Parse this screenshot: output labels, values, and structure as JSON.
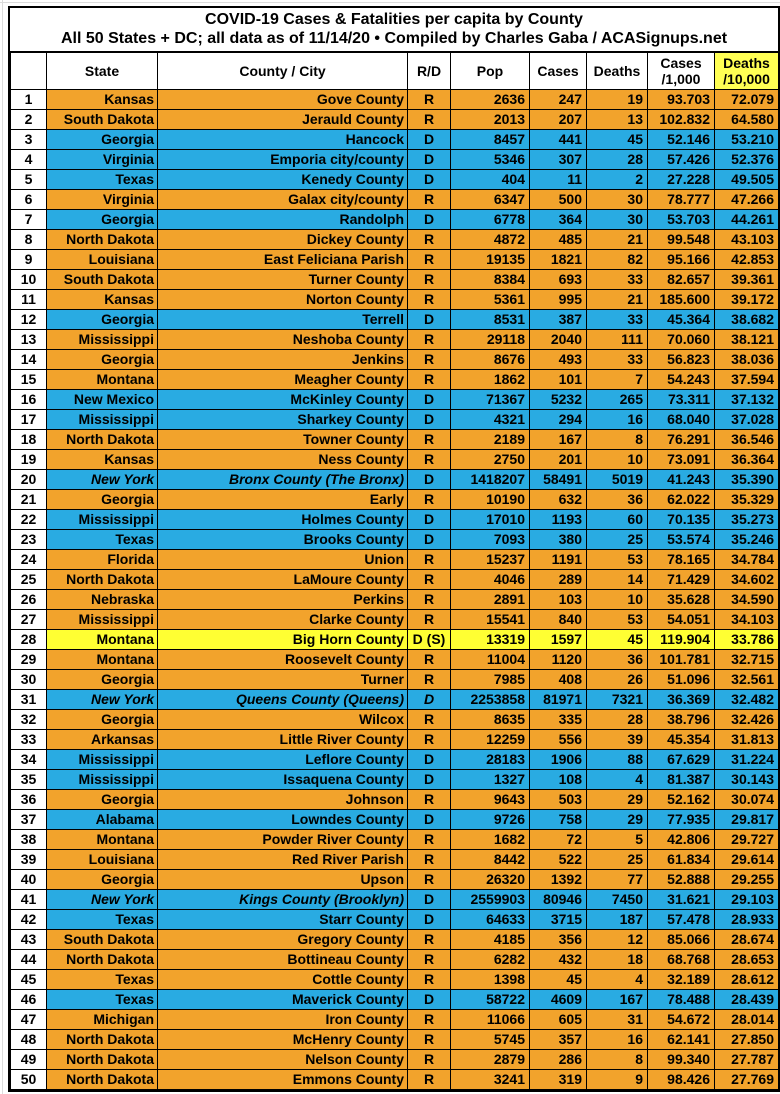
{
  "title": "COVID-19 Cases & Fatalities per capita by County",
  "subtitle": "All 50 States + DC; all data as of 11/14/20  • Compiled by Charles Gaba / ACASignups.net",
  "columns": {
    "rank": "",
    "state": "State",
    "county": "County / City",
    "rd": "R/D",
    "pop": "Pop",
    "cases": "Cases",
    "deaths": "Deaths",
    "cases_per_1000_l1": "Cases",
    "cases_per_1000_l2": "/1,000",
    "deaths_per_10000_l1": "Deaths",
    "deaths_per_10000_l2": "/10,000"
  },
  "colors": {
    "republican_row": "#F2A32C",
    "democrat_row": "#29ABE2",
    "split_row": "#FFFF33",
    "header_highlight": "#FFFF54",
    "border": "#000000"
  },
  "chart_data": {
    "type": "table",
    "title": "COVID-19 Cases & Fatalities per capita by County",
    "subtitle": "All 50 States + DC; all data as of 11/14/20  • Compiled by Charles Gaba / ACASignups.net",
    "columns": [
      "",
      "State",
      "County / City",
      "R/D",
      "Pop",
      "Cases",
      "Deaths",
      "Cases /1,000",
      "Deaths /10,000"
    ],
    "rows": [
      {
        "rank": 1,
        "state": "Kansas",
        "county": "Gove County",
        "rd": "R",
        "pop": 2636,
        "cases": 247,
        "deaths": 19,
        "c1k": "93.703",
        "d10k": "72.079",
        "fill": "R",
        "italic": false,
        "rd_italic": false
      },
      {
        "rank": 2,
        "state": "South Dakota",
        "county": "Jerauld County",
        "rd": "R",
        "pop": 2013,
        "cases": 207,
        "deaths": 13,
        "c1k": "102.832",
        "d10k": "64.580",
        "fill": "R",
        "italic": false,
        "rd_italic": false
      },
      {
        "rank": 3,
        "state": "Georgia",
        "county": "Hancock",
        "rd": "D",
        "pop": 8457,
        "cases": 441,
        "deaths": 45,
        "c1k": "52.146",
        "d10k": "53.210",
        "fill": "D",
        "italic": false,
        "rd_italic": false
      },
      {
        "rank": 4,
        "state": "Virginia",
        "county": "Emporia city/county",
        "rd": "D",
        "pop": 5346,
        "cases": 307,
        "deaths": 28,
        "c1k": "57.426",
        "d10k": "52.376",
        "fill": "D",
        "italic": false,
        "rd_italic": false
      },
      {
        "rank": 5,
        "state": "Texas",
        "county": "Kenedy County",
        "rd": "D",
        "pop": 404,
        "cases": 11,
        "deaths": 2,
        "c1k": "27.228",
        "d10k": "49.505",
        "fill": "D",
        "italic": false,
        "rd_italic": false
      },
      {
        "rank": 6,
        "state": "Virginia",
        "county": "Galax city/county",
        "rd": "R",
        "pop": 6347,
        "cases": 500,
        "deaths": 30,
        "c1k": "78.777",
        "d10k": "47.266",
        "fill": "R",
        "italic": false,
        "rd_italic": false
      },
      {
        "rank": 7,
        "state": "Georgia",
        "county": "Randolph",
        "rd": "D",
        "pop": 6778,
        "cases": 364,
        "deaths": 30,
        "c1k": "53.703",
        "d10k": "44.261",
        "fill": "D",
        "italic": false,
        "rd_italic": false
      },
      {
        "rank": 8,
        "state": "North Dakota",
        "county": "Dickey County",
        "rd": "R",
        "pop": 4872,
        "cases": 485,
        "deaths": 21,
        "c1k": "99.548",
        "d10k": "43.103",
        "fill": "R",
        "italic": false,
        "rd_italic": false
      },
      {
        "rank": 9,
        "state": "Louisiana",
        "county": "East Feliciana Parish",
        "rd": "R",
        "pop": 19135,
        "cases": 1821,
        "deaths": 82,
        "c1k": "95.166",
        "d10k": "42.853",
        "fill": "R",
        "italic": false,
        "rd_italic": false
      },
      {
        "rank": 10,
        "state": "South Dakota",
        "county": "Turner County",
        "rd": "R",
        "pop": 8384,
        "cases": 693,
        "deaths": 33,
        "c1k": "82.657",
        "d10k": "39.361",
        "fill": "R",
        "italic": false,
        "rd_italic": false
      },
      {
        "rank": 11,
        "state": "Kansas",
        "county": "Norton County",
        "rd": "R",
        "pop": 5361,
        "cases": 995,
        "deaths": 21,
        "c1k": "185.600",
        "d10k": "39.172",
        "fill": "R",
        "italic": false,
        "rd_italic": false
      },
      {
        "rank": 12,
        "state": "Georgia",
        "county": "Terrell",
        "rd": "D",
        "pop": 8531,
        "cases": 387,
        "deaths": 33,
        "c1k": "45.364",
        "d10k": "38.682",
        "fill": "D",
        "italic": false,
        "rd_italic": false
      },
      {
        "rank": 13,
        "state": "Mississippi",
        "county": "Neshoba County",
        "rd": "R",
        "pop": 29118,
        "cases": 2040,
        "deaths": 111,
        "c1k": "70.060",
        "d10k": "38.121",
        "fill": "R",
        "italic": false,
        "rd_italic": false
      },
      {
        "rank": 14,
        "state": "Georgia",
        "county": "Jenkins",
        "rd": "R",
        "pop": 8676,
        "cases": 493,
        "deaths": 33,
        "c1k": "56.823",
        "d10k": "38.036",
        "fill": "R",
        "italic": false,
        "rd_italic": false
      },
      {
        "rank": 15,
        "state": "Montana",
        "county": "Meagher County",
        "rd": "R",
        "pop": 1862,
        "cases": 101,
        "deaths": 7,
        "c1k": "54.243",
        "d10k": "37.594",
        "fill": "R",
        "italic": false,
        "rd_italic": false
      },
      {
        "rank": 16,
        "state": "New Mexico",
        "county": "McKinley County",
        "rd": "D",
        "pop": 71367,
        "cases": 5232,
        "deaths": 265,
        "c1k": "73.311",
        "d10k": "37.132",
        "fill": "D",
        "italic": false,
        "rd_italic": false
      },
      {
        "rank": 17,
        "state": "Mississippi",
        "county": "Sharkey County",
        "rd": "D",
        "pop": 4321,
        "cases": 294,
        "deaths": 16,
        "c1k": "68.040",
        "d10k": "37.028",
        "fill": "D",
        "italic": false,
        "rd_italic": false
      },
      {
        "rank": 18,
        "state": "North Dakota",
        "county": "Towner County",
        "rd": "R",
        "pop": 2189,
        "cases": 167,
        "deaths": 8,
        "c1k": "76.291",
        "d10k": "36.546",
        "fill": "R",
        "italic": false,
        "rd_italic": false
      },
      {
        "rank": 19,
        "state": "Kansas",
        "county": "Ness County",
        "rd": "R",
        "pop": 2750,
        "cases": 201,
        "deaths": 10,
        "c1k": "73.091",
        "d10k": "36.364",
        "fill": "R",
        "italic": false,
        "rd_italic": false
      },
      {
        "rank": 20,
        "state": "New York",
        "county": "Bronx County (The Bronx)",
        "rd": "D",
        "pop": 1418207,
        "cases": 58491,
        "deaths": 5019,
        "c1k": "41.243",
        "d10k": "35.390",
        "fill": "D",
        "italic": true,
        "rd_italic": false
      },
      {
        "rank": 21,
        "state": "Georgia",
        "county": "Early",
        "rd": "R",
        "pop": 10190,
        "cases": 632,
        "deaths": 36,
        "c1k": "62.022",
        "d10k": "35.329",
        "fill": "R",
        "italic": false,
        "rd_italic": false
      },
      {
        "rank": 22,
        "state": "Mississippi",
        "county": "Holmes County",
        "rd": "D",
        "pop": 17010,
        "cases": 1193,
        "deaths": 60,
        "c1k": "70.135",
        "d10k": "35.273",
        "fill": "D",
        "italic": false,
        "rd_italic": false
      },
      {
        "rank": 23,
        "state": "Texas",
        "county": "Brooks County",
        "rd": "D",
        "pop": 7093,
        "cases": 380,
        "deaths": 25,
        "c1k": "53.574",
        "d10k": "35.246",
        "fill": "D",
        "italic": false,
        "rd_italic": false
      },
      {
        "rank": 24,
        "state": "Florida",
        "county": "Union",
        "rd": "R",
        "pop": 15237,
        "cases": 1191,
        "deaths": 53,
        "c1k": "78.165",
        "d10k": "34.784",
        "fill": "R",
        "italic": false,
        "rd_italic": false
      },
      {
        "rank": 25,
        "state": "North Dakota",
        "county": "LaMoure County",
        "rd": "R",
        "pop": 4046,
        "cases": 289,
        "deaths": 14,
        "c1k": "71.429",
        "d10k": "34.602",
        "fill": "R",
        "italic": false,
        "rd_italic": false
      },
      {
        "rank": 26,
        "state": "Nebraska",
        "county": "Perkins",
        "rd": "R",
        "pop": 2891,
        "cases": 103,
        "deaths": 10,
        "c1k": "35.628",
        "d10k": "34.590",
        "fill": "R",
        "italic": false,
        "rd_italic": false
      },
      {
        "rank": 27,
        "state": "Mississippi",
        "county": "Clarke County",
        "rd": "R",
        "pop": 15541,
        "cases": 840,
        "deaths": 53,
        "c1k": "54.051",
        "d10k": "34.103",
        "fill": "R",
        "italic": false,
        "rd_italic": false
      },
      {
        "rank": 28,
        "state": "Montana",
        "county": "Big Horn County",
        "rd": "D (S)",
        "pop": 13319,
        "cases": 1597,
        "deaths": 45,
        "c1k": "119.904",
        "d10k": "33.786",
        "fill": "S",
        "italic": false,
        "rd_italic": false
      },
      {
        "rank": 29,
        "state": "Montana",
        "county": "Roosevelt County",
        "rd": "R",
        "pop": 11004,
        "cases": 1120,
        "deaths": 36,
        "c1k": "101.781",
        "d10k": "32.715",
        "fill": "R",
        "italic": false,
        "rd_italic": false
      },
      {
        "rank": 30,
        "state": "Georgia",
        "county": "Turner",
        "rd": "R",
        "pop": 7985,
        "cases": 408,
        "deaths": 26,
        "c1k": "51.096",
        "d10k": "32.561",
        "fill": "R",
        "italic": false,
        "rd_italic": false
      },
      {
        "rank": 31,
        "state": "New York",
        "county": "Queens County (Queens)",
        "rd": "D",
        "pop": 2253858,
        "cases": 81971,
        "deaths": 7321,
        "c1k": "36.369",
        "d10k": "32.482",
        "fill": "D",
        "italic": true,
        "rd_italic": true
      },
      {
        "rank": 32,
        "state": "Georgia",
        "county": "Wilcox",
        "rd": "R",
        "pop": 8635,
        "cases": 335,
        "deaths": 28,
        "c1k": "38.796",
        "d10k": "32.426",
        "fill": "R",
        "italic": false,
        "rd_italic": false
      },
      {
        "rank": 33,
        "state": "Arkansas",
        "county": "Little River County",
        "rd": "R",
        "pop": 12259,
        "cases": 556,
        "deaths": 39,
        "c1k": "45.354",
        "d10k": "31.813",
        "fill": "R",
        "italic": false,
        "rd_italic": false
      },
      {
        "rank": 34,
        "state": "Mississippi",
        "county": "Leflore County",
        "rd": "D",
        "pop": 28183,
        "cases": 1906,
        "deaths": 88,
        "c1k": "67.629",
        "d10k": "31.224",
        "fill": "D",
        "italic": false,
        "rd_italic": false
      },
      {
        "rank": 35,
        "state": "Mississippi",
        "county": "Issaquena County",
        "rd": "D",
        "pop": 1327,
        "cases": 108,
        "deaths": 4,
        "c1k": "81.387",
        "d10k": "30.143",
        "fill": "D",
        "italic": false,
        "rd_italic": false
      },
      {
        "rank": 36,
        "state": "Georgia",
        "county": "Johnson",
        "rd": "R",
        "pop": 9643,
        "cases": 503,
        "deaths": 29,
        "c1k": "52.162",
        "d10k": "30.074",
        "fill": "R",
        "italic": false,
        "rd_italic": false
      },
      {
        "rank": 37,
        "state": "Alabama",
        "county": "Lowndes County",
        "rd": "D",
        "pop": 9726,
        "cases": 758,
        "deaths": 29,
        "c1k": "77.935",
        "d10k": "29.817",
        "fill": "D",
        "italic": false,
        "rd_italic": false
      },
      {
        "rank": 38,
        "state": "Montana",
        "county": "Powder River County",
        "rd": "R",
        "pop": 1682,
        "cases": 72,
        "deaths": 5,
        "c1k": "42.806",
        "d10k": "29.727",
        "fill": "R",
        "italic": false,
        "rd_italic": false
      },
      {
        "rank": 39,
        "state": "Louisiana",
        "county": "Red River Parish",
        "rd": "R",
        "pop": 8442,
        "cases": 522,
        "deaths": 25,
        "c1k": "61.834",
        "d10k": "29.614",
        "fill": "R",
        "italic": false,
        "rd_italic": false
      },
      {
        "rank": 40,
        "state": "Georgia",
        "county": "Upson",
        "rd": "R",
        "pop": 26320,
        "cases": 1392,
        "deaths": 77,
        "c1k": "52.888",
        "d10k": "29.255",
        "fill": "R",
        "italic": false,
        "rd_italic": false
      },
      {
        "rank": 41,
        "state": "New York",
        "county": "Kings County (Brooklyn)",
        "rd": "D",
        "pop": 2559903,
        "cases": 80946,
        "deaths": 7450,
        "c1k": "31.621",
        "d10k": "29.103",
        "fill": "D",
        "italic": true,
        "rd_italic": false
      },
      {
        "rank": 42,
        "state": "Texas",
        "county": "Starr County",
        "rd": "D",
        "pop": 64633,
        "cases": 3715,
        "deaths": 187,
        "c1k": "57.478",
        "d10k": "28.933",
        "fill": "D",
        "italic": false,
        "rd_italic": false
      },
      {
        "rank": 43,
        "state": "South Dakota",
        "county": "Gregory County",
        "rd": "R",
        "pop": 4185,
        "cases": 356,
        "deaths": 12,
        "c1k": "85.066",
        "d10k": "28.674",
        "fill": "R",
        "italic": false,
        "rd_italic": false
      },
      {
        "rank": 44,
        "state": "North Dakota",
        "county": "Bottineau County",
        "rd": "R",
        "pop": 6282,
        "cases": 432,
        "deaths": 18,
        "c1k": "68.768",
        "d10k": "28.653",
        "fill": "R",
        "italic": false,
        "rd_italic": false
      },
      {
        "rank": 45,
        "state": "Texas",
        "county": "Cottle County",
        "rd": "R",
        "pop": 1398,
        "cases": 45,
        "deaths": 4,
        "c1k": "32.189",
        "d10k": "28.612",
        "fill": "R",
        "italic": false,
        "rd_italic": false
      },
      {
        "rank": 46,
        "state": "Texas",
        "county": "Maverick County",
        "rd": "D",
        "pop": 58722,
        "cases": 4609,
        "deaths": 167,
        "c1k": "78.488",
        "d10k": "28.439",
        "fill": "D",
        "italic": false,
        "rd_italic": false
      },
      {
        "rank": 47,
        "state": "Michigan",
        "county": "Iron County",
        "rd": "R",
        "pop": 11066,
        "cases": 605,
        "deaths": 31,
        "c1k": "54.672",
        "d10k": "28.014",
        "fill": "R",
        "italic": false,
        "rd_italic": false
      },
      {
        "rank": 48,
        "state": "North Dakota",
        "county": "McHenry County",
        "rd": "R",
        "pop": 5745,
        "cases": 357,
        "deaths": 16,
        "c1k": "62.141",
        "d10k": "27.850",
        "fill": "R",
        "italic": false,
        "rd_italic": false
      },
      {
        "rank": 49,
        "state": "North Dakota",
        "county": "Nelson County",
        "rd": "R",
        "pop": 2879,
        "cases": 286,
        "deaths": 8,
        "c1k": "99.340",
        "d10k": "27.787",
        "fill": "R",
        "italic": false,
        "rd_italic": false
      },
      {
        "rank": 50,
        "state": "North Dakota",
        "county": "Emmons County",
        "rd": "R",
        "pop": 3241,
        "cases": 319,
        "deaths": 9,
        "c1k": "98.426",
        "d10k": "27.769",
        "fill": "R",
        "italic": false,
        "rd_italic": false
      }
    ]
  }
}
